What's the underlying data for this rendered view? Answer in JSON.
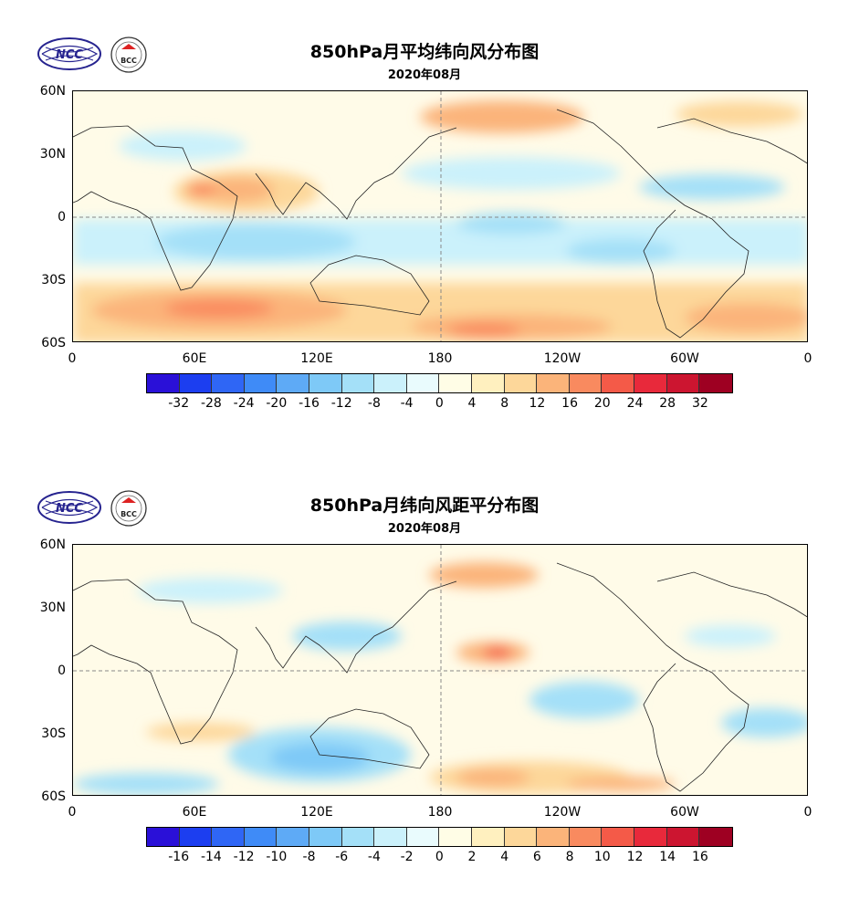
{
  "panels": [
    {
      "title": "850hPa月平均纬向风分布图",
      "subtitle": "2020年08月",
      "lat_labels": [
        "60N",
        "30N",
        "0",
        "30S",
        "60S"
      ],
      "lon_labels": [
        "0",
        "60E",
        "120E",
        "180",
        "120W",
        "60W",
        "0"
      ],
      "colorbar_labels": [
        "-32",
        "-28",
        "-24",
        "-20",
        "-16",
        "-12",
        "-8",
        "-4",
        "0",
        "4",
        "8",
        "12",
        "16",
        "20",
        "24",
        "28",
        "32"
      ]
    },
    {
      "title": "850hPa月纬向风距平分布图",
      "subtitle": "2020年08月",
      "lat_labels": [
        "60N",
        "30N",
        "0",
        "30S",
        "60S"
      ],
      "lon_labels": [
        "0",
        "60E",
        "120E",
        "180",
        "120W",
        "60W",
        "0"
      ],
      "colorbar_labels": [
        "-16",
        "-14",
        "-12",
        "-10",
        "-8",
        "-6",
        "-4",
        "-2",
        "0",
        "2",
        "4",
        "6",
        "8",
        "10",
        "12",
        "14",
        "16"
      ]
    }
  ],
  "logos": {
    "left_text": "NCC",
    "right_text": "BCC"
  },
  "palette": [
    "#2a10d8",
    "#1c3ef0",
    "#2f66f5",
    "#3f8bf7",
    "#5eaaf6",
    "#7ec9f7",
    "#a4e0f8",
    "#cbf1fb",
    "#e9fbfd",
    "#fffde6",
    "#fff0bf",
    "#fdd79a",
    "#fbb47a",
    "#f98a5f",
    "#f45a48",
    "#e8293b",
    "#cc1530",
    "#9e0022"
  ]
}
